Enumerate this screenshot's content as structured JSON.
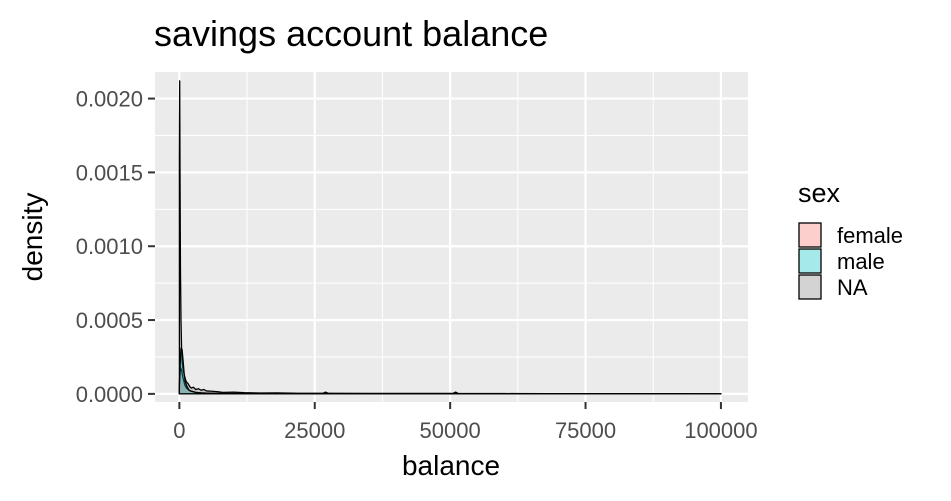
{
  "chart_data": {
    "type": "area",
    "title": "savings account balance",
    "xlabel": "balance",
    "ylabel": "density",
    "xlim": [
      -4500,
      105000
    ],
    "ylim": [
      -5.5e-05,
      0.00218
    ],
    "x_ticks": [
      0,
      25000,
      50000,
      75000,
      100000
    ],
    "x_tick_labels": [
      "0",
      "25000",
      "50000",
      "75000",
      "100000"
    ],
    "y_ticks": [
      0,
      0.0005,
      0.001,
      0.0015,
      0.002
    ],
    "y_tick_labels": [
      "0.0000",
      "0.0005",
      "0.0010",
      "0.0015",
      "0.0020"
    ],
    "grid": true,
    "legend": {
      "title": "sex",
      "position": "right",
      "entries": [
        {
          "label": "female",
          "color": "#F8766D"
        },
        {
          "label": "male",
          "color": "#00BFC4"
        },
        {
          "label": "NA",
          "color": "#808080"
        }
      ]
    },
    "series": [
      {
        "name": "NA",
        "color": "#808080",
        "x": [
          0,
          60,
          120,
          200,
          300,
          400,
          500,
          700,
          900,
          1100,
          1300,
          1600,
          1900,
          2200,
          2600,
          3000,
          3500,
          4000,
          4500,
          5000,
          6000,
          7000,
          8000,
          10000,
          12000,
          15000,
          18000,
          22000,
          26500,
          27000,
          27500,
          35000,
          45000,
          50500,
          51000,
          51500,
          60000,
          75000,
          90000,
          100000
        ],
        "values": [
          0.0016,
          0.00212,
          0.0015,
          0.00085,
          0.0005,
          0.00032,
          0.00022,
          0.00016,
          0.00013,
          0.0001,
          8e-05,
          7e-05,
          5e-05,
          4e-05,
          4.5e-05,
          3e-05,
          3.5e-05,
          2.5e-05,
          3e-05,
          2e-05,
          1.8e-05,
          1.5e-05,
          1e-05,
          1.2e-05,
          8e-06,
          6e-06,
          7e-06,
          4e-06,
          4e-06,
          1.2e-05,
          4e-06,
          3e-06,
          3e-06,
          3e-06,
          1.2e-05,
          3e-06,
          2e-06,
          1e-06,
          1e-06,
          1e-06
        ]
      },
      {
        "name": "female",
        "color": "#F8766D",
        "x": [
          0,
          100,
          200,
          400,
          600,
          800,
          1000,
          1300,
          1600,
          2000,
          2500,
          3000,
          4000,
          5000,
          7000,
          10000,
          15000,
          25000,
          50000,
          100000
        ],
        "values": [
          4e-05,
          0.00012,
          0.00018,
          0.00016,
          0.00012,
          9e-05,
          6e-05,
          4e-05,
          3e-05,
          2e-05,
          1.5e-05,
          1e-05,
          7e-06,
          5e-06,
          3e-06,
          2e-06,
          1e-06,
          1e-06,
          5e-07,
          2e-07
        ]
      },
      {
        "name": "male",
        "color": "#00BFC4",
        "x": [
          0,
          100,
          200,
          300,
          500,
          700,
          900,
          1100,
          1400,
          1700,
          2000,
          2500,
          3000,
          4000,
          5000,
          7000,
          10000,
          15000,
          25000,
          50000,
          100000
        ],
        "values": [
          6e-05,
          0.00016,
          0.00024,
          0.00031,
          0.0003,
          0.00022,
          0.00013,
          8e-05,
          5e-05,
          3e-05,
          2e-05,
          1.5e-05,
          1e-05,
          7e-06,
          5e-06,
          3e-06,
          2e-06,
          1e-06,
          1e-06,
          5e-07,
          2e-07
        ]
      }
    ]
  }
}
